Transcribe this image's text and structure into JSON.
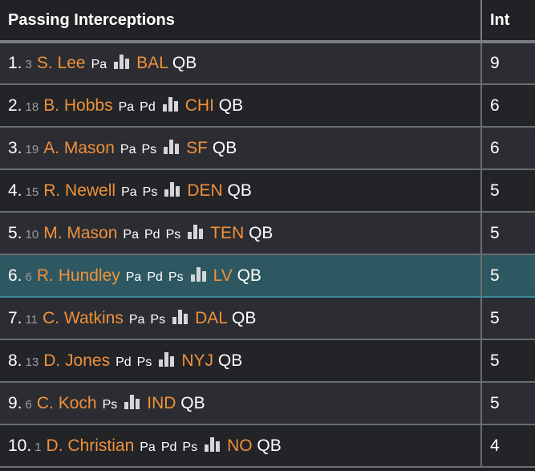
{
  "header": {
    "title": "Passing Interceptions",
    "int": "Int"
  },
  "rows": [
    {
      "rank": "1.",
      "seed": "3",
      "name": "S. Lee",
      "badges": [
        "Pa"
      ],
      "team": "BAL",
      "pos": "QB",
      "int": "9"
    },
    {
      "rank": "2.",
      "seed": "18",
      "name": "B. Hobbs",
      "badges": [
        "Pa",
        "Pd"
      ],
      "team": "CHI",
      "pos": "QB",
      "int": "6"
    },
    {
      "rank": "3.",
      "seed": "19",
      "name": "A. Mason",
      "badges": [
        "Pa",
        "Ps"
      ],
      "team": "SF",
      "pos": "QB",
      "int": "6"
    },
    {
      "rank": "4.",
      "seed": "15",
      "name": "R. Newell",
      "badges": [
        "Pa",
        "Ps"
      ],
      "team": "DEN",
      "pos": "QB",
      "int": "5"
    },
    {
      "rank": "5.",
      "seed": "10",
      "name": "M. Mason",
      "badges": [
        "Pa",
        "Pd",
        "Ps"
      ],
      "team": "TEN",
      "pos": "QB",
      "int": "5"
    },
    {
      "rank": "6.",
      "seed": "6",
      "name": "R. Hundley",
      "badges": [
        "Pa",
        "Pd",
        "Ps"
      ],
      "team": "LV",
      "pos": "QB",
      "int": "5",
      "highlight": true
    },
    {
      "rank": "7.",
      "seed": "11",
      "name": "C. Watkins",
      "badges": [
        "Pa",
        "Ps"
      ],
      "team": "DAL",
      "pos": "QB",
      "int": "5"
    },
    {
      "rank": "8.",
      "seed": "13",
      "name": "D. Jones",
      "badges": [
        "Pd",
        "Ps"
      ],
      "team": "NYJ",
      "pos": "QB",
      "int": "5"
    },
    {
      "rank": "9.",
      "seed": "6",
      "name": "C. Koch",
      "badges": [
        "Ps"
      ],
      "team": "IND",
      "pos": "QB",
      "int": "5"
    },
    {
      "rank": "10.",
      "seed": "1",
      "name": "D. Christian",
      "badges": [
        "Pa",
        "Pd",
        "Ps"
      ],
      "team": "NO",
      "pos": "QB",
      "int": "4"
    }
  ]
}
